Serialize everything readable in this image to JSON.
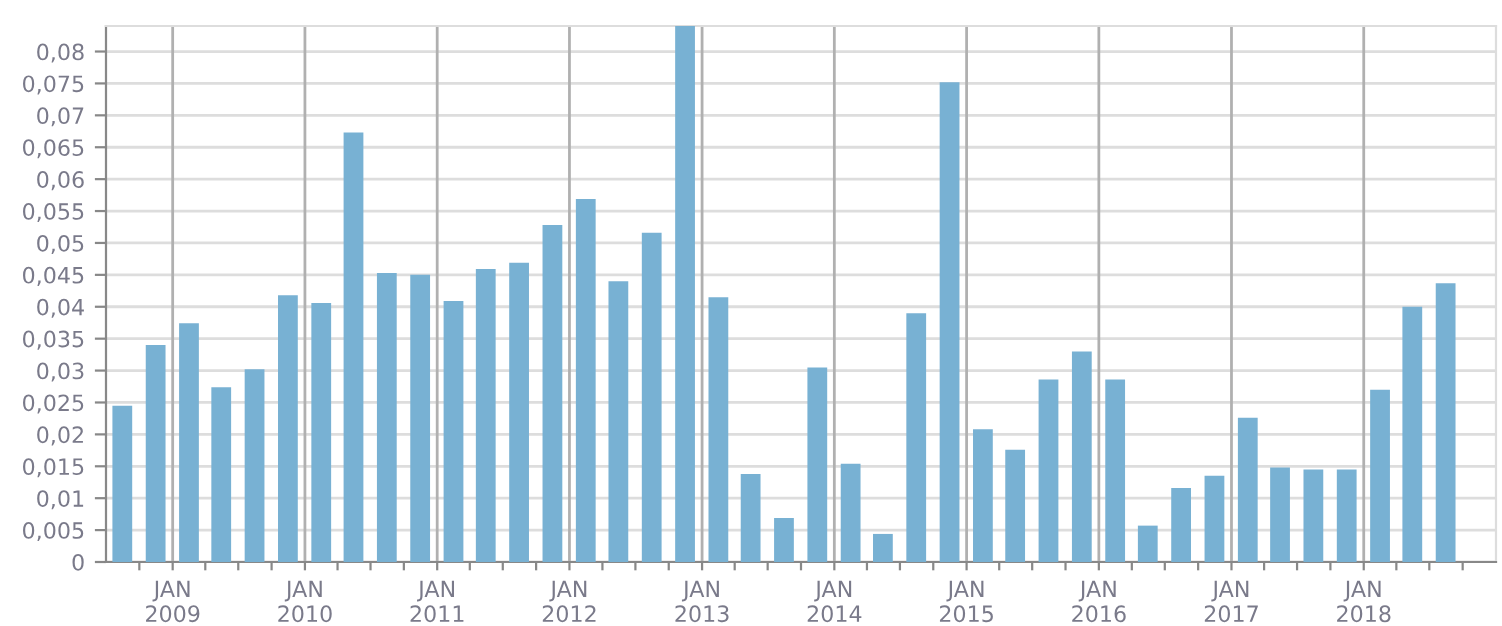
{
  "chart_data": {
    "type": "bar",
    "x": [
      "2008-08-15",
      "2008-11-15",
      "2009-02-15",
      "2009-05-15",
      "2009-08-15",
      "2009-11-15",
      "2010-02-15",
      "2010-05-15",
      "2010-08-15",
      "2010-11-15",
      "2011-02-15",
      "2011-05-15",
      "2011-08-15",
      "2011-11-15",
      "2012-02-15",
      "2012-05-15",
      "2012-08-15",
      "2012-11-15",
      "2013-02-15",
      "2013-05-15",
      "2013-08-15",
      "2013-11-15",
      "2014-02-15",
      "2014-05-15",
      "2014-08-15",
      "2014-11-15",
      "2015-02-15",
      "2015-05-15",
      "2015-08-15",
      "2015-11-15",
      "2016-02-15",
      "2016-05-15",
      "2016-08-15",
      "2016-11-15",
      "2017-02-15",
      "2017-05-15",
      "2017-08-15",
      "2017-11-15",
      "2018-02-15",
      "2018-05-15",
      "2018-08-15"
    ],
    "values": [
      0.0245,
      0.034,
      0.0374,
      0.0274,
      0.0302,
      0.0418,
      0.0406,
      0.0673,
      0.0453,
      0.045,
      0.0409,
      0.0459,
      0.0469,
      0.0528,
      0.0569,
      0.044,
      0.0516,
      0.084,
      0.0415,
      0.0138,
      0.0069,
      0.0305,
      0.0154,
      0.0044,
      0.039,
      0.0752,
      0.0208,
      0.0176,
      0.0286,
      0.033,
      0.0286,
      0.0057,
      0.0116,
      0.0135,
      0.0226,
      0.0148,
      0.0145,
      0.0145,
      0.027,
      0.04,
      0.0437
    ],
    "color": "#78b1d3",
    "ylim": [
      0,
      0.084
    ],
    "yticks": [
      0,
      {
        "value": 0.005,
        "label": "0,005"
      },
      {
        "value": 0.01,
        "label": "0,01"
      },
      {
        "value": 0.015,
        "label": "0,015"
      },
      {
        "value": 0.02,
        "label": "0,02"
      },
      {
        "value": 0.025,
        "label": "0,025"
      },
      {
        "value": 0.03,
        "label": "0,03"
      },
      {
        "value": 0.035,
        "label": "0,035"
      },
      {
        "value": 0.04,
        "label": "0,04"
      },
      {
        "value": 0.045,
        "label": "0,045"
      },
      {
        "value": 0.05,
        "label": "0,05"
      },
      {
        "value": 0.055,
        "label": "0,055"
      },
      {
        "value": 0.06,
        "label": "0,06"
      },
      {
        "value": 0.065,
        "label": "0,065"
      },
      {
        "value": 0.07,
        "label": "0,07"
      },
      {
        "value": 0.075,
        "label": "0,075"
      },
      {
        "value": 0.08,
        "label": "0,08"
      }
    ],
    "xlim": [
      "2008-07-01",
      "2019-01-01"
    ],
    "xticks": [
      {
        "value": "2008-10-01",
        "label": null
      },
      {
        "value": "2009-01-01",
        "label": "JAN\n2009"
      },
      {
        "value": "2009-04-01",
        "label": null
      },
      {
        "value": "2009-07-01",
        "label": null
      },
      {
        "value": "2009-10-01",
        "label": null
      },
      {
        "value": "2010-01-01",
        "label": "JAN\n2010"
      },
      {
        "value": "2010-04-01",
        "label": null
      },
      {
        "value": "2010-07-01",
        "label": null
      },
      {
        "value": "2010-10-01",
        "label": null
      },
      {
        "value": "2011-01-01",
        "label": "JAN\n2011"
      },
      {
        "value": "2011-04-01",
        "label": null
      },
      {
        "value": "2011-07-01",
        "label": null
      },
      {
        "value": "2011-10-01",
        "label": null
      },
      {
        "value": "2012-01-01",
        "label": "JAN\n2012"
      },
      {
        "value": "2012-04-01",
        "label": null
      },
      {
        "value": "2012-07-01",
        "label": null
      },
      {
        "value": "2012-10-01",
        "label": null
      },
      {
        "value": "2013-01-01",
        "label": "JAN\n2013"
      },
      {
        "value": "2013-04-01",
        "label": null
      },
      {
        "value": "2013-07-01",
        "label": null
      },
      {
        "value": "2013-10-01",
        "label": null
      },
      {
        "value": "2014-01-01",
        "label": "JAN\n2014"
      },
      {
        "value": "2014-04-01",
        "label": null
      },
      {
        "value": "2014-07-01",
        "label": null
      },
      {
        "value": "2014-10-01",
        "label": null
      },
      {
        "value": "2015-01-01",
        "label": "JAN\n2015"
      },
      {
        "value": "2015-04-01",
        "label": null
      },
      {
        "value": "2015-07-01",
        "label": null
      },
      {
        "value": "2015-10-01",
        "label": null
      },
      {
        "value": "2016-01-01",
        "label": "JAN\n2016"
      },
      {
        "value": "2016-04-01",
        "label": null
      },
      {
        "value": "2016-07-01",
        "label": null
      },
      {
        "value": "2016-10-01",
        "label": null
      },
      {
        "value": "2017-01-01",
        "label": "JAN\n2017"
      },
      {
        "value": "2017-04-01",
        "label": null
      },
      {
        "value": "2017-07-01",
        "label": null
      },
      {
        "value": "2017-10-01",
        "label": null
      },
      {
        "value": "2018-01-01",
        "label": "JAN\n2018"
      },
      {
        "value": "2018-04-01",
        "label": null
      },
      {
        "value": "2018-07-01",
        "label": null
      },
      {
        "value": "2018-10-01",
        "label": null
      }
    ],
    "grid": true
  }
}
